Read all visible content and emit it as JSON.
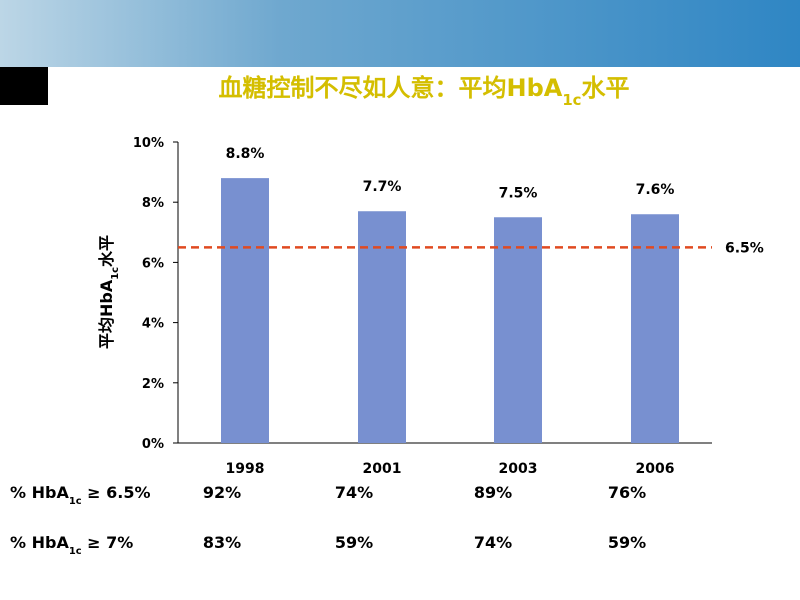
{
  "chart_data": {
    "type": "bar",
    "title": [
      "血糖控制不尽如人意：平均HbA",
      "1c",
      "水平"
    ],
    "y_label": [
      "平均HbA",
      "1c",
      "水平"
    ],
    "categories": [
      "1998",
      "2001",
      "2003",
      "2006"
    ],
    "values": [
      8.8,
      7.7,
      7.5,
      7.6
    ],
    "value_labels": [
      "8.8%",
      "7.7%",
      "7.5%",
      "7.6%"
    ],
    "color": "#7890d0",
    "ylim": [
      0,
      10
    ],
    "yticks": [
      {
        "value": 0,
        "label": "0%"
      },
      {
        "value": 2,
        "label": "2%"
      },
      {
        "value": 4,
        "label": "4%"
      },
      {
        "value": 6,
        "label": "6%"
      },
      {
        "value": 8,
        "label": "8%"
      },
      {
        "value": 10,
        "label": "10%"
      }
    ],
    "reference_line": {
      "value": 6.5,
      "label": "6.5%",
      "color": "#e04a20"
    },
    "table": [
      {
        "label": [
          "% HbA",
          "1c",
          " ≥ 6.5%"
        ],
        "cells": [
          "92%",
          "74%",
          "89%",
          "76%"
        ]
      },
      {
        "label": [
          "% HbA",
          "1c",
          " ≥ 7%"
        ],
        "cells": [
          "83%",
          "59%",
          "74%",
          "59%"
        ]
      }
    ]
  }
}
